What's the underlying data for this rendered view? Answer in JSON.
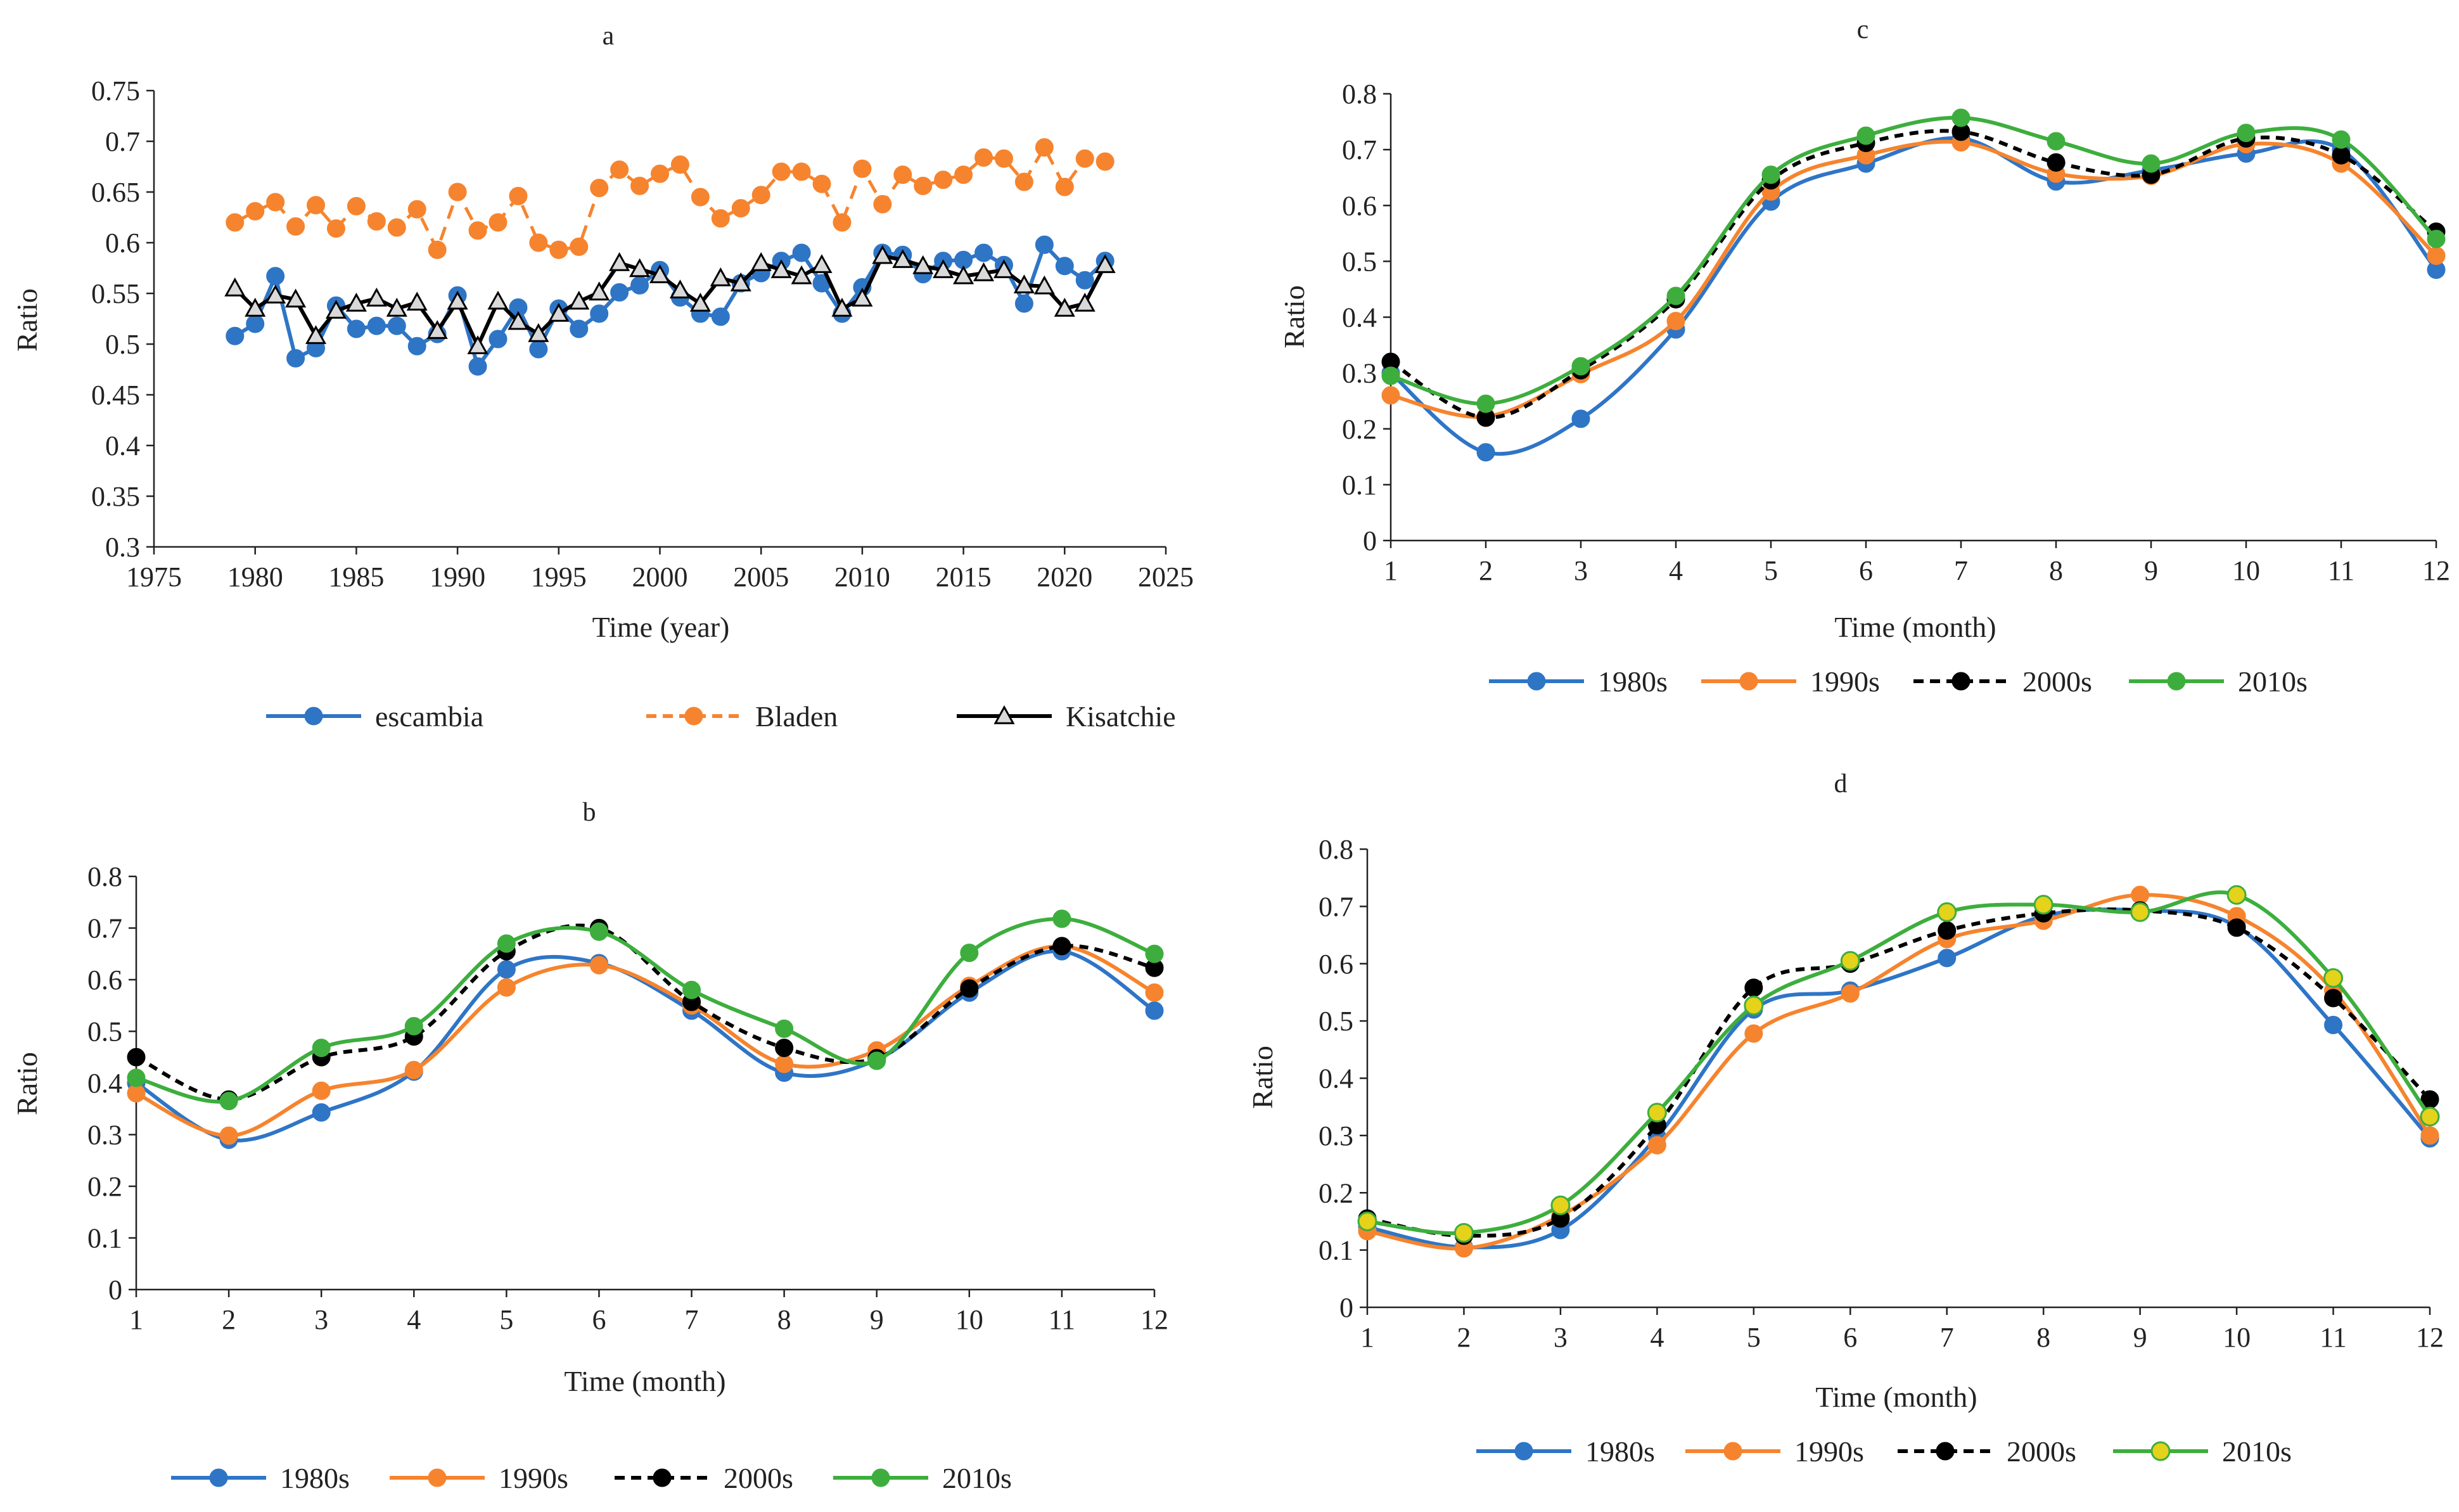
{
  "chart_data": [
    {
      "id": "a",
      "type": "line",
      "title": "a",
      "xlabel": "Time (year)",
      "ylabel": "Ratio",
      "xlim": [
        1975,
        2025
      ],
      "ylim": [
        0.3,
        0.75
      ],
      "xticks": [
        "1975",
        "1980",
        "1985",
        "1990",
        "1995",
        "2000",
        "2005",
        "2010",
        "2015",
        "2020",
        "2025"
      ],
      "yticks": [
        "0.3",
        "0.35",
        "0.4",
        "0.45",
        "0.5",
        "0.55",
        "0.6",
        "0.65",
        "0.7",
        "0.75"
      ],
      "x": [
        1979,
        1980,
        1981,
        1982,
        1983,
        1984,
        1985,
        1986,
        1987,
        1988,
        1989,
        1990,
        1991,
        1992,
        1993,
        1994,
        1995,
        1996,
        1997,
        1998,
        1999,
        2000,
        2001,
        2002,
        2003,
        2004,
        2005,
        2006,
        2007,
        2008,
        2009,
        2010,
        2011,
        2012,
        2013,
        2014,
        2015,
        2016,
        2017,
        2018,
        2019,
        2020,
        2021,
        2022
      ],
      "series": [
        {
          "name": "escambia",
          "color": "#2E75C6",
          "style": "solid",
          "marker": "circle",
          "smooth": false,
          "values": [
            0.508,
            0.52,
            0.567,
            0.486,
            0.496,
            0.538,
            0.515,
            0.518,
            0.518,
            0.498,
            0.51,
            0.548,
            0.478,
            0.505,
            0.536,
            0.495,
            0.535,
            0.515,
            0.53,
            0.551,
            0.558,
            0.573,
            0.546,
            0.53,
            0.527,
            0.56,
            0.57,
            0.582,
            0.59,
            0.56,
            0.53,
            0.556,
            0.59,
            0.588,
            0.569,
            0.582,
            0.583,
            0.59,
            0.578,
            0.54,
            0.598,
            0.577,
            0.563,
            0.582
          ]
        },
        {
          "name": "Bladen",
          "color": "#F6842E",
          "style": "dashed",
          "marker": "circle",
          "smooth": false,
          "values": [
            0.62,
            0.631,
            0.64,
            0.616,
            0.637,
            0.614,
            0.636,
            0.621,
            0.615,
            0.633,
            0.593,
            0.65,
            0.612,
            0.62,
            0.646,
            0.6,
            0.593,
            0.596,
            0.654,
            0.672,
            0.656,
            0.668,
            0.677,
            0.645,
            0.624,
            0.634,
            0.647,
            0.67,
            0.67,
            0.658,
            0.62,
            0.673,
            0.638,
            0.667,
            0.656,
            0.662,
            0.667,
            0.684,
            0.683,
            0.66,
            0.694,
            0.655,
            0.683,
            0.68
          ]
        },
        {
          "name": "Kisatchie",
          "color": "#000000",
          "style": "solid",
          "marker": "triangle",
          "smooth": false,
          "values": [
            0.555,
            0.535,
            0.548,
            0.544,
            0.508,
            0.533,
            0.54,
            0.545,
            0.535,
            0.541,
            0.513,
            0.542,
            0.498,
            0.542,
            0.522,
            0.51,
            0.53,
            0.542,
            0.551,
            0.58,
            0.574,
            0.568,
            0.553,
            0.54,
            0.565,
            0.56,
            0.58,
            0.573,
            0.567,
            0.578,
            0.535,
            0.545,
            0.587,
            0.583,
            0.577,
            0.573,
            0.567,
            0.57,
            0.573,
            0.558,
            0.557,
            0.535,
            0.54,
            0.578
          ]
        }
      ]
    },
    {
      "id": "b",
      "type": "line",
      "title": "b",
      "xlabel": "Time (month)",
      "ylabel": "Ratio",
      "xlim": [
        1,
        12
      ],
      "ylim": [
        0,
        0.8
      ],
      "xticks": [
        "1",
        "2",
        "3",
        "4",
        "5",
        "6",
        "7",
        "8",
        "9",
        "10",
        "11",
        "12"
      ],
      "yticks": [
        "0",
        "0.1",
        "0.2",
        "0.3",
        "0.4",
        "0.5",
        "0.6",
        "0.7",
        "0.8"
      ],
      "x": [
        1,
        2,
        3,
        4,
        5,
        6,
        7,
        8,
        9,
        10,
        11,
        12
      ],
      "series": [
        {
          "name": "1980s",
          "color": "#2E75C6",
          "style": "solid",
          "marker": "circle",
          "smooth": true,
          "values": [
            0.4,
            0.29,
            0.343,
            0.422,
            0.62,
            0.632,
            0.54,
            0.42,
            0.445,
            0.575,
            0.655,
            0.54
          ]
        },
        {
          "name": "1990s",
          "color": "#F6842E",
          "style": "solid",
          "marker": "circle",
          "smooth": true,
          "values": [
            0.38,
            0.298,
            0.385,
            0.425,
            0.585,
            0.628,
            0.55,
            0.437,
            0.463,
            0.588,
            0.665,
            0.575
          ]
        },
        {
          "name": "2000s",
          "color": "#000000",
          "style": "dashed",
          "marker": "circle",
          "smooth": true,
          "values": [
            0.45,
            0.368,
            0.45,
            0.49,
            0.655,
            0.7,
            0.557,
            0.468,
            0.448,
            0.583,
            0.665,
            0.623
          ]
        },
        {
          "name": "2010s",
          "color": "#3DAE3D",
          "style": "solid",
          "marker": "circle",
          "smooth": true,
          "values": [
            0.41,
            0.365,
            0.468,
            0.51,
            0.67,
            0.693,
            0.58,
            0.505,
            0.443,
            0.652,
            0.718,
            0.65
          ]
        }
      ]
    },
    {
      "id": "c",
      "type": "line",
      "title": "c",
      "xlabel": "Time (month)",
      "ylabel": "Ratio",
      "xlim": [
        1,
        12
      ],
      "ylim": [
        0,
        0.8
      ],
      "xticks": [
        "1",
        "2",
        "3",
        "4",
        "5",
        "6",
        "7",
        "8",
        "9",
        "10",
        "11",
        "12"
      ],
      "yticks": [
        "0",
        "0.1",
        "0.2",
        "0.3",
        "0.4",
        "0.5",
        "0.6",
        "0.7",
        "0.8"
      ],
      "x": [
        1,
        2,
        3,
        4,
        5,
        6,
        7,
        8,
        9,
        10,
        11,
        12
      ],
      "series": [
        {
          "name": "1980s",
          "color": "#2E75C6",
          "style": "solid",
          "marker": "circle",
          "smooth": true,
          "values": [
            0.3,
            0.158,
            0.218,
            0.378,
            0.607,
            0.675,
            0.72,
            0.643,
            0.663,
            0.693,
            0.7,
            0.485
          ]
        },
        {
          "name": "1990s",
          "color": "#F6842E",
          "style": "solid",
          "marker": "circle",
          "smooth": true,
          "values": [
            0.26,
            0.222,
            0.298,
            0.393,
            0.625,
            0.69,
            0.713,
            0.657,
            0.653,
            0.71,
            0.675,
            0.51
          ]
        },
        {
          "name": "2000s",
          "color": "#000000",
          "style": "dashed",
          "marker": "circle",
          "smooth": true,
          "values": [
            0.32,
            0.22,
            0.305,
            0.432,
            0.645,
            0.712,
            0.732,
            0.677,
            0.655,
            0.72,
            0.69,
            0.553
          ]
        },
        {
          "name": "2010s",
          "color": "#3DAE3D",
          "style": "solid",
          "marker": "circle",
          "smooth": true,
          "values": [
            0.295,
            0.245,
            0.312,
            0.438,
            0.655,
            0.725,
            0.757,
            0.715,
            0.675,
            0.73,
            0.718,
            0.54
          ]
        }
      ]
    },
    {
      "id": "d",
      "type": "line",
      "title": "d",
      "xlabel": "Time (month)",
      "ylabel": "Ratio",
      "xlim": [
        1,
        12
      ],
      "ylim": [
        0,
        0.8
      ],
      "xticks": [
        "1",
        "2",
        "3",
        "4",
        "5",
        "6",
        "7",
        "8",
        "9",
        "10",
        "11",
        "12"
      ],
      "yticks": [
        "0",
        "0.1",
        "0.2",
        "0.3",
        "0.4",
        "0.5",
        "0.6",
        "0.7",
        "0.8"
      ],
      "x": [
        1,
        2,
        3,
        4,
        5,
        6,
        7,
        8,
        9,
        10,
        11,
        12
      ],
      "series": [
        {
          "name": "1980s",
          "color": "#2E75C6",
          "style": "solid",
          "marker": "circle",
          "smooth": true,
          "values": [
            0.14,
            0.105,
            0.135,
            0.298,
            0.52,
            0.553,
            0.61,
            0.683,
            0.693,
            0.665,
            0.493,
            0.295
          ]
        },
        {
          "name": "1990s",
          "color": "#F6842E",
          "style": "solid",
          "marker": "circle",
          "smooth": true,
          "values": [
            0.133,
            0.103,
            0.16,
            0.283,
            0.478,
            0.548,
            0.643,
            0.675,
            0.72,
            0.683,
            0.553,
            0.3
          ]
        },
        {
          "name": "2000s",
          "color": "#000000",
          "style": "dashed",
          "marker": "circle",
          "smooth": true,
          "values": [
            0.155,
            0.125,
            0.155,
            0.318,
            0.558,
            0.6,
            0.658,
            0.688,
            0.693,
            0.663,
            0.54,
            0.363
          ]
        },
        {
          "name": "2010s",
          "color": "#3DAE3D",
          "style": "solid",
          "marker": "circle",
          "markerFill": "#E5D21A",
          "smooth": true,
          "values": [
            0.15,
            0.13,
            0.178,
            0.34,
            0.527,
            0.605,
            0.69,
            0.703,
            0.69,
            0.72,
            0.575,
            0.333
          ]
        }
      ]
    }
  ]
}
